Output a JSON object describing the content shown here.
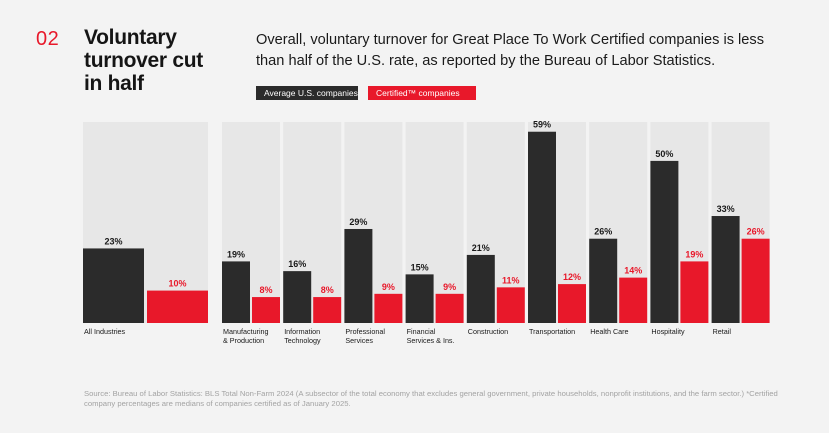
{
  "section_number": "02",
  "headline": "Voluntary turnover cut in half",
  "intro": "Overall, voluntary turnover for Great Place To Work Certified companies is less than half of the U.S. rate, as reported by the Bureau of Labor Statistics.",
  "legend": {
    "average": "Average U.S. companies",
    "certified": "Certified™ companies"
  },
  "colors": {
    "average": "#2b2b2b",
    "certified": "#e8182a",
    "value_average": "#1a1a1a",
    "value_certified": "#e8182a",
    "panel": "#e7e7e7"
  },
  "chart_data": {
    "type": "bar",
    "categories": [
      "All Industries",
      "Manufacturing & Production",
      "Information Technology",
      "Professional Services",
      "Financial Services & Ins.",
      "Construction",
      "Transportation",
      "Health Care",
      "Hospitality",
      "Retail"
    ],
    "category_lines": [
      [
        "All Industries"
      ],
      [
        "Manufacturing",
        "& Production"
      ],
      [
        "Information",
        "Technology"
      ],
      [
        "Professional",
        "Services"
      ],
      [
        "Financial",
        "Services & Ins."
      ],
      [
        "Construction"
      ],
      [
        "Transportation"
      ],
      [
        "Health Care"
      ],
      [
        "Hospitality"
      ],
      [
        "Retail"
      ]
    ],
    "series": [
      {
        "name": "Average U.S. companies",
        "values": [
          23,
          19,
          16,
          29,
          15,
          21,
          59,
          26,
          50,
          33
        ],
        "labels": [
          "23%",
          "19%",
          "16%",
          "29%",
          "15%",
          "21%",
          "59%",
          "26%",
          "50%",
          "33%"
        ]
      },
      {
        "name": "Certified™ companies",
        "values": [
          10,
          8,
          8,
          9,
          9,
          11,
          12,
          14,
          19,
          26
        ],
        "labels": [
          "10%",
          "8%",
          "8%",
          "9%",
          "9%",
          "11%",
          "12%",
          "14%",
          "19%",
          "26%"
        ]
      }
    ],
    "ylim": [
      0,
      62
    ],
    "grid": false,
    "legend_position": "top-left"
  },
  "source": "Source: Bureau of Labor Statistics: BLS Total Non-Farm 2024 (A subsector of the total economy that excludes general government, private households, nonprofit institutions, and the farm sector.) *Certified company percentages are medians of companies certified as of January 2025."
}
